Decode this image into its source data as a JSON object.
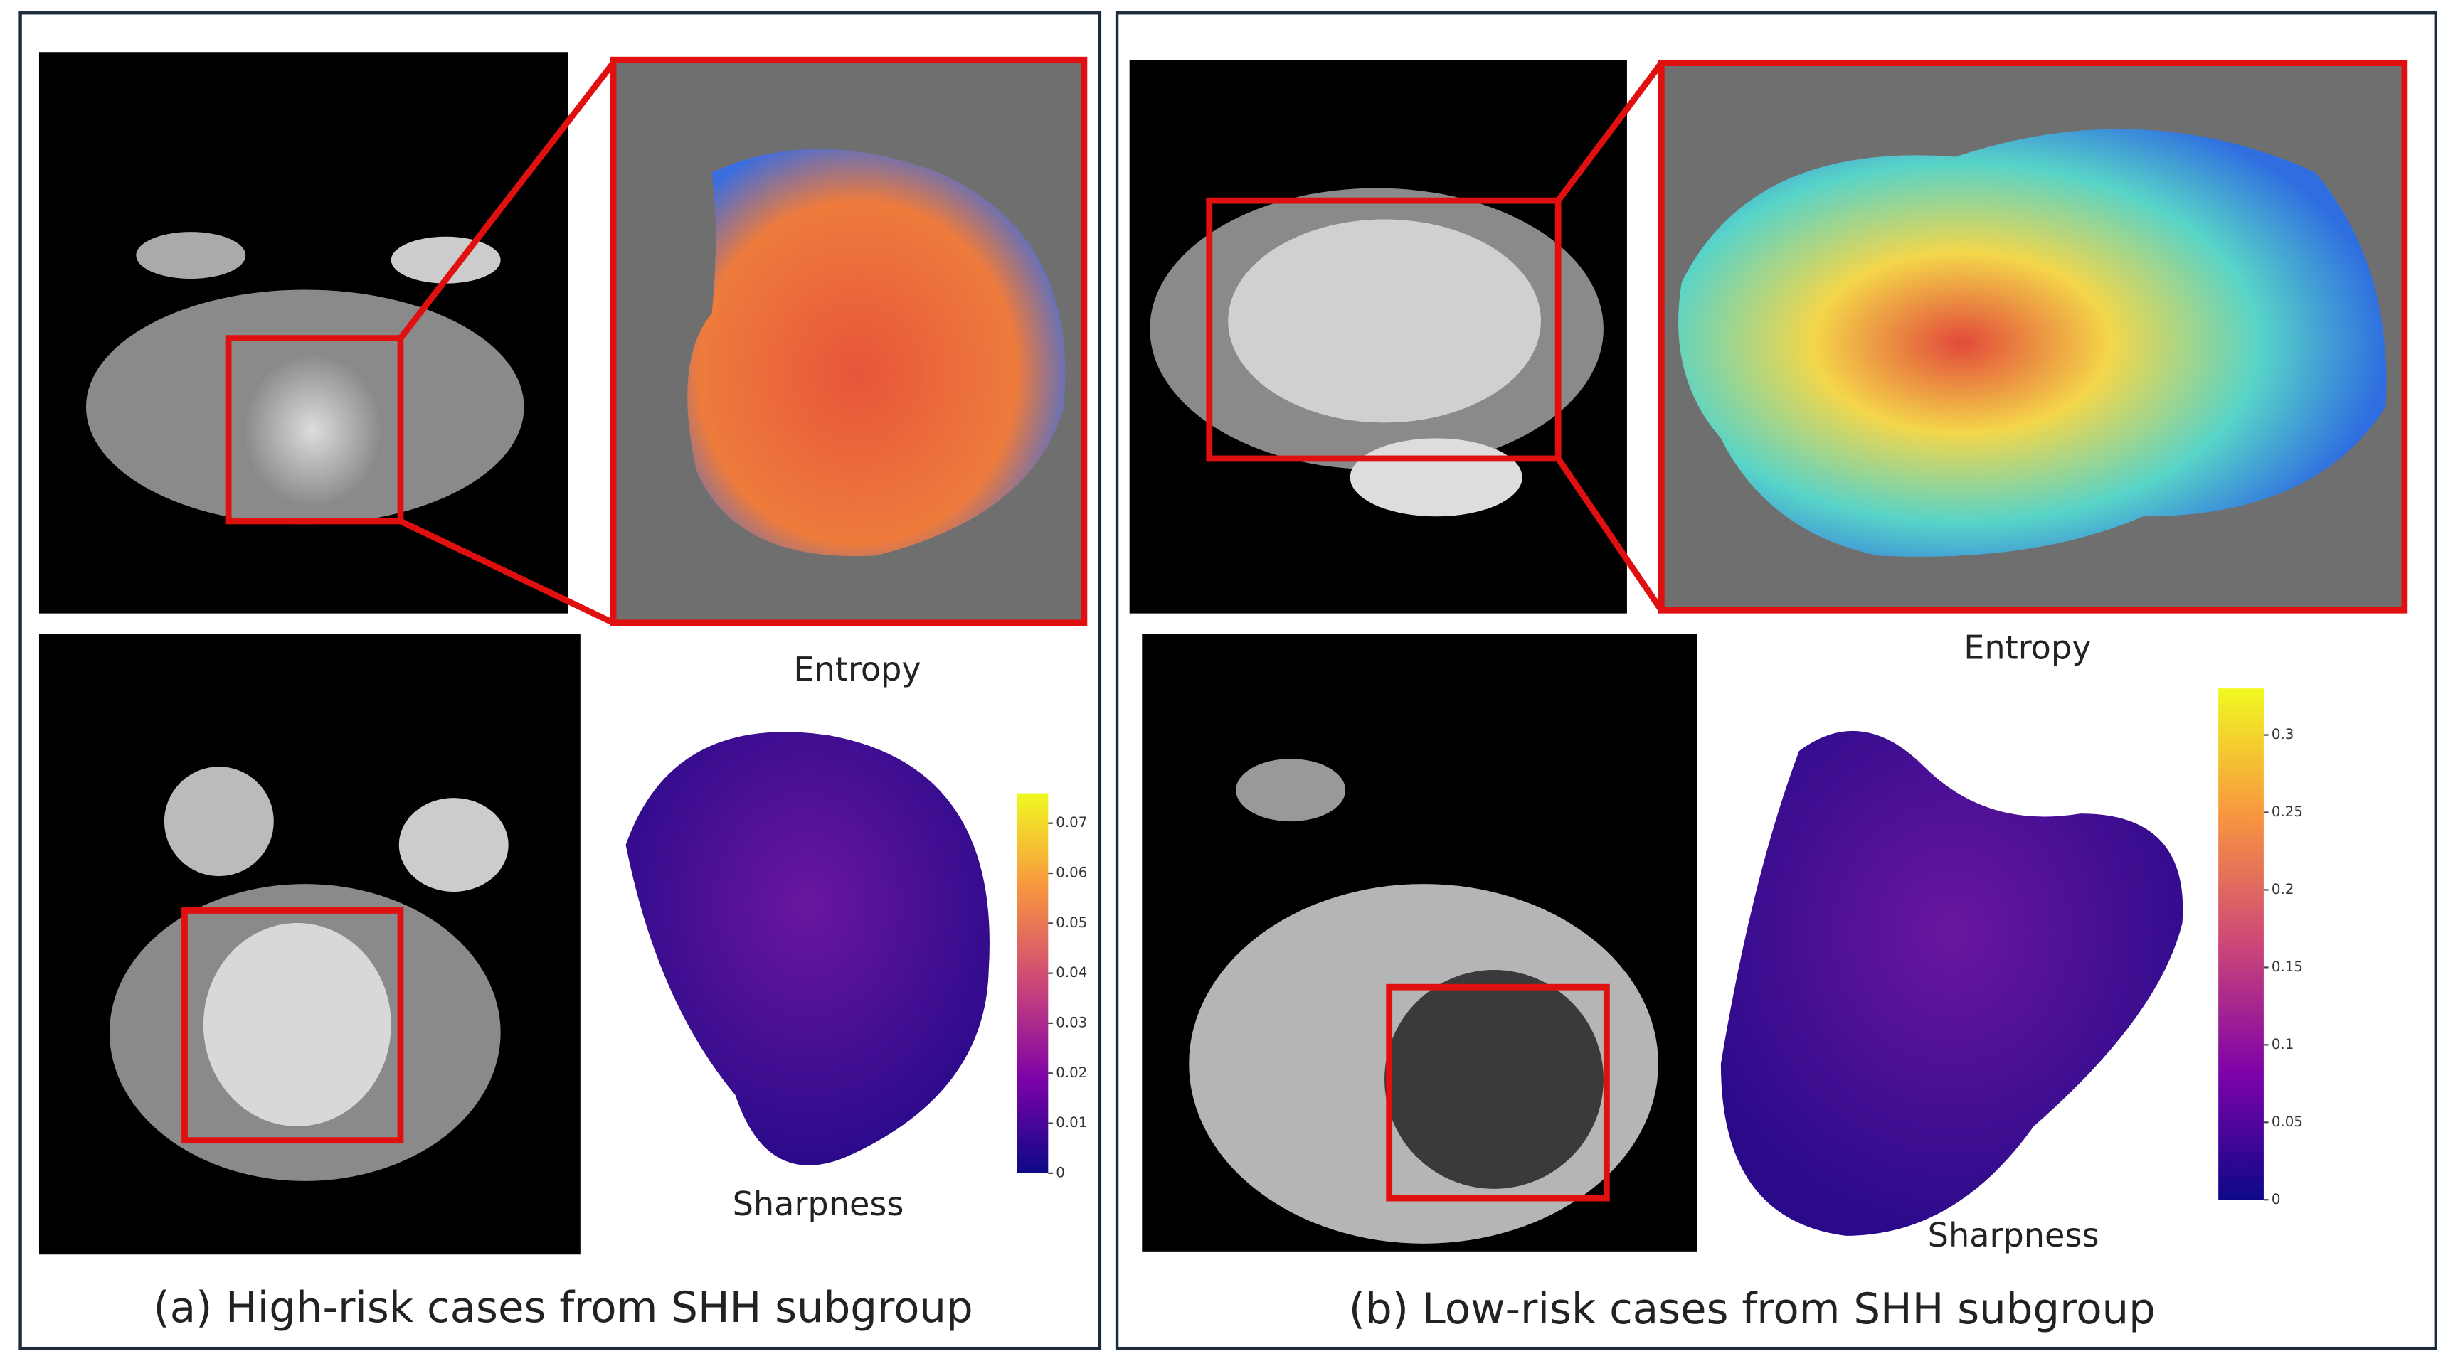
{
  "panels": [
    {
      "caption": "(a) High-risk cases from SHH subgroup",
      "entropy_label": "Entropy",
      "sharpness_label": "Sharpness",
      "colorbar": {
        "lim": [
          0,
          0.076
        ],
        "ticks": [
          0,
          0.01,
          0.02,
          0.03,
          0.04,
          0.05,
          0.06,
          0.07
        ]
      }
    },
    {
      "caption": "(b) Low-risk cases from SHH subgroup",
      "entropy_label": "Entropy",
      "sharpness_label": "Sharpness",
      "colorbar": {
        "lim": [
          0,
          0.33
        ],
        "ticks": [
          0,
          0.05,
          0.1,
          0.15,
          0.2,
          0.25,
          0.3
        ]
      }
    }
  ]
}
